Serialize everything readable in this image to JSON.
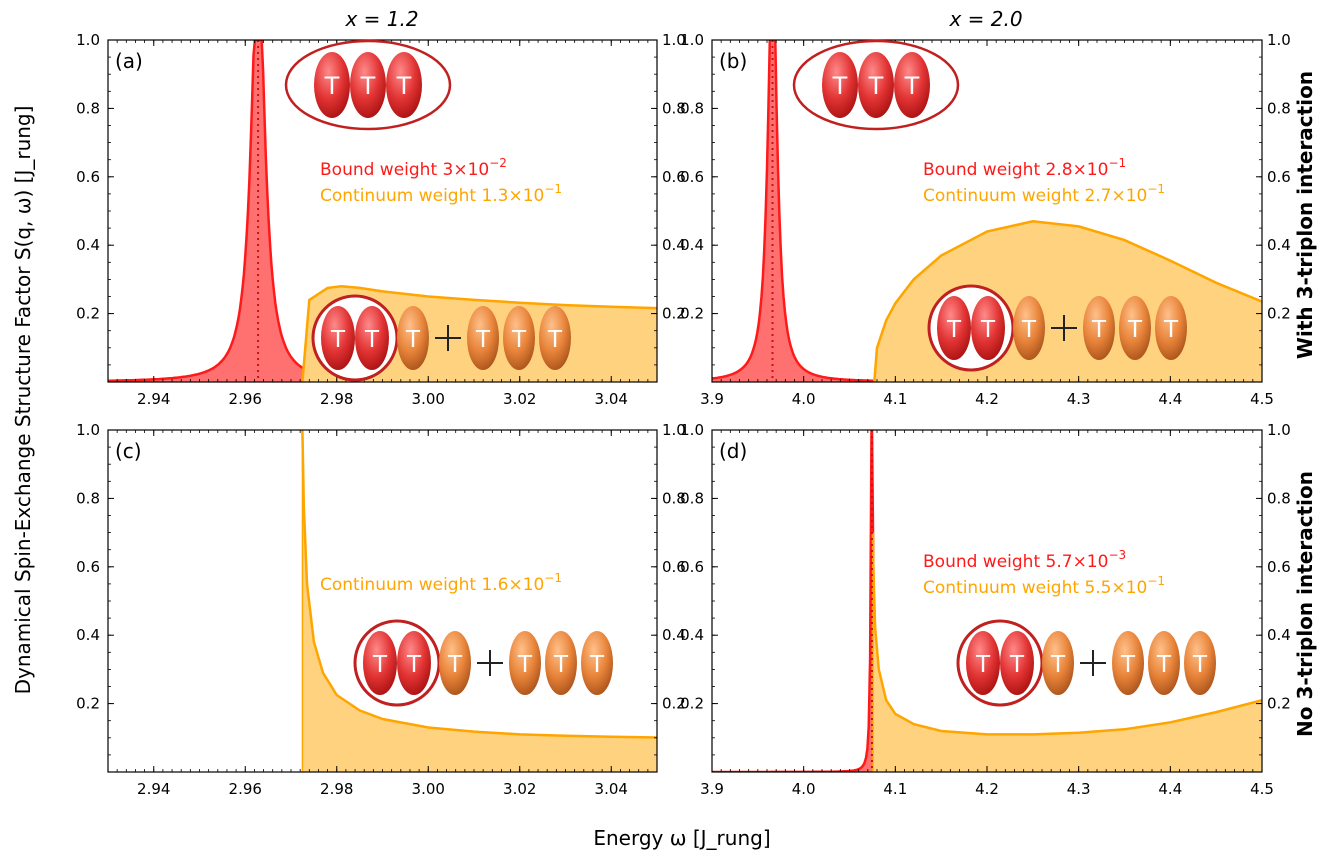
{
  "figure": {
    "column_titles": [
      "x = 1.2",
      "x = 2.0"
    ],
    "row_titles": [
      "With 3-triplon interaction",
      "No 3-triplon interaction"
    ],
    "ylabel": "Dynamical Spin-Exchange Structure Factor S(q, ω) [J_rung]",
    "xlabel": "Energy ω [J_rung]"
  },
  "colors": {
    "bound_line": "#ff1a1a",
    "bound_fill": "#ff7070",
    "continuum_line": "#ffa500",
    "continuum_fill": "#ffd27f",
    "triplon_red": "#e63a3a",
    "triplon_orange": "#e8843a"
  },
  "icons": [
    "bound-three-triplon-icon",
    "two-triplon-bound-plus-triplon-icon"
  ],
  "chart_data": [
    {
      "panel": "(a)",
      "type": "area",
      "xlim": [
        2.93,
        3.05
      ],
      "ylim": [
        0,
        1.0
      ],
      "xticks": [
        "2.94",
        "2.96",
        "2.98",
        "3.00",
        "3.02",
        "3.04"
      ],
      "yticks": [
        "0.2",
        "0.4",
        "0.6",
        "0.8",
        "1.0"
      ],
      "annotations": [
        {
          "text": "Bound weight 3×10",
          "exp": "−2",
          "color": "bound"
        },
        {
          "text": "Continuum weight 1.3×10",
          "exp": "−1",
          "color": "continuum"
        }
      ],
      "series": [
        {
          "name": "Bound",
          "kind": "peak",
          "center": 2.9628,
          "gamma": 0.0018,
          "height": 1.0
        },
        {
          "name": "Continuum",
          "kind": "curve",
          "x": [
            2.9725,
            2.974,
            2.978,
            2.981,
            2.985,
            2.99,
            3.0,
            3.01,
            3.02,
            3.03,
            3.04,
            3.05
          ],
          "y": [
            0.0,
            0.24,
            0.275,
            0.28,
            0.275,
            0.265,
            0.25,
            0.24,
            0.232,
            0.225,
            0.22,
            0.216
          ]
        }
      ],
      "bound_marker_x": 2.9628
    },
    {
      "panel": "(b)",
      "type": "area",
      "xlim": [
        3.9,
        4.5
      ],
      "ylim": [
        0,
        1.0
      ],
      "xticks": [
        "3.9",
        "4.0",
        "4.1",
        "4.2",
        "4.3",
        "4.4",
        "4.5"
      ],
      "yticks": [
        "0.2",
        "0.4",
        "0.6",
        "0.8",
        "1.0"
      ],
      "annotations": [
        {
          "text": "Bound weight 2.8×10",
          "exp": "−1",
          "color": "bound"
        },
        {
          "text": "Continuum weight 2.7×10",
          "exp": "−1",
          "color": "continuum"
        }
      ],
      "series": [
        {
          "name": "Bound",
          "kind": "peak",
          "center": 3.966,
          "gamma": 0.006,
          "height": 1.0
        },
        {
          "name": "Continuum",
          "kind": "curve",
          "x": [
            4.077,
            4.08,
            4.09,
            4.1,
            4.12,
            4.15,
            4.2,
            4.25,
            4.3,
            4.35,
            4.4,
            4.45,
            4.5
          ],
          "y": [
            0.0,
            0.1,
            0.18,
            0.23,
            0.3,
            0.37,
            0.44,
            0.47,
            0.455,
            0.415,
            0.355,
            0.29,
            0.235
          ]
        }
      ],
      "bound_marker_x": 3.966
    },
    {
      "panel": "(c)",
      "type": "area",
      "xlim": [
        2.93,
        3.05
      ],
      "ylim": [
        0,
        1.0
      ],
      "xticks": [
        "2.94",
        "2.96",
        "2.98",
        "3.00",
        "3.02",
        "3.04"
      ],
      "yticks": [
        "0.2",
        "0.4",
        "0.6",
        "0.8",
        "1.0"
      ],
      "annotations": [
        {
          "text": "Continuum weight 1.6×10",
          "exp": "−1",
          "color": "continuum"
        }
      ],
      "series": [
        {
          "name": "Continuum",
          "kind": "curve",
          "x": [
            2.9725,
            2.9728,
            2.9735,
            2.975,
            2.977,
            2.98,
            2.985,
            2.99,
            3.0,
            3.01,
            3.02,
            3.03,
            3.04,
            3.05
          ],
          "y": [
            1.0,
            0.78,
            0.55,
            0.38,
            0.29,
            0.225,
            0.18,
            0.155,
            0.13,
            0.118,
            0.11,
            0.106,
            0.103,
            0.101
          ]
        }
      ]
    },
    {
      "panel": "(d)",
      "type": "area",
      "xlim": [
        3.9,
        4.5
      ],
      "ylim": [
        0,
        1.0
      ],
      "xticks": [
        "3.9",
        "4.0",
        "4.1",
        "4.2",
        "4.3",
        "4.4",
        "4.5"
      ],
      "yticks": [
        "0.2",
        "0.4",
        "0.6",
        "0.8",
        "1.0"
      ],
      "annotations": [
        {
          "text": "Bound weight 5.7×10",
          "exp": "−3",
          "color": "bound"
        },
        {
          "text": "Continuum weight 5.5×10",
          "exp": "−1",
          "color": "continuum"
        }
      ],
      "series": [
        {
          "name": "Bound",
          "kind": "peak",
          "center": 4.0745,
          "gamma": 0.0012,
          "height": 1.0
        },
        {
          "name": "Continuum",
          "kind": "curve",
          "x": [
            4.0755,
            4.076,
            4.078,
            4.082,
            4.09,
            4.1,
            4.12,
            4.15,
            4.2,
            4.25,
            4.3,
            4.35,
            4.4,
            4.45,
            4.5
          ],
          "y": [
            0.7,
            0.6,
            0.42,
            0.3,
            0.21,
            0.17,
            0.14,
            0.12,
            0.11,
            0.11,
            0.115,
            0.125,
            0.145,
            0.175,
            0.21
          ]
        }
      ],
      "bound_marker_x": 4.0745
    }
  ]
}
